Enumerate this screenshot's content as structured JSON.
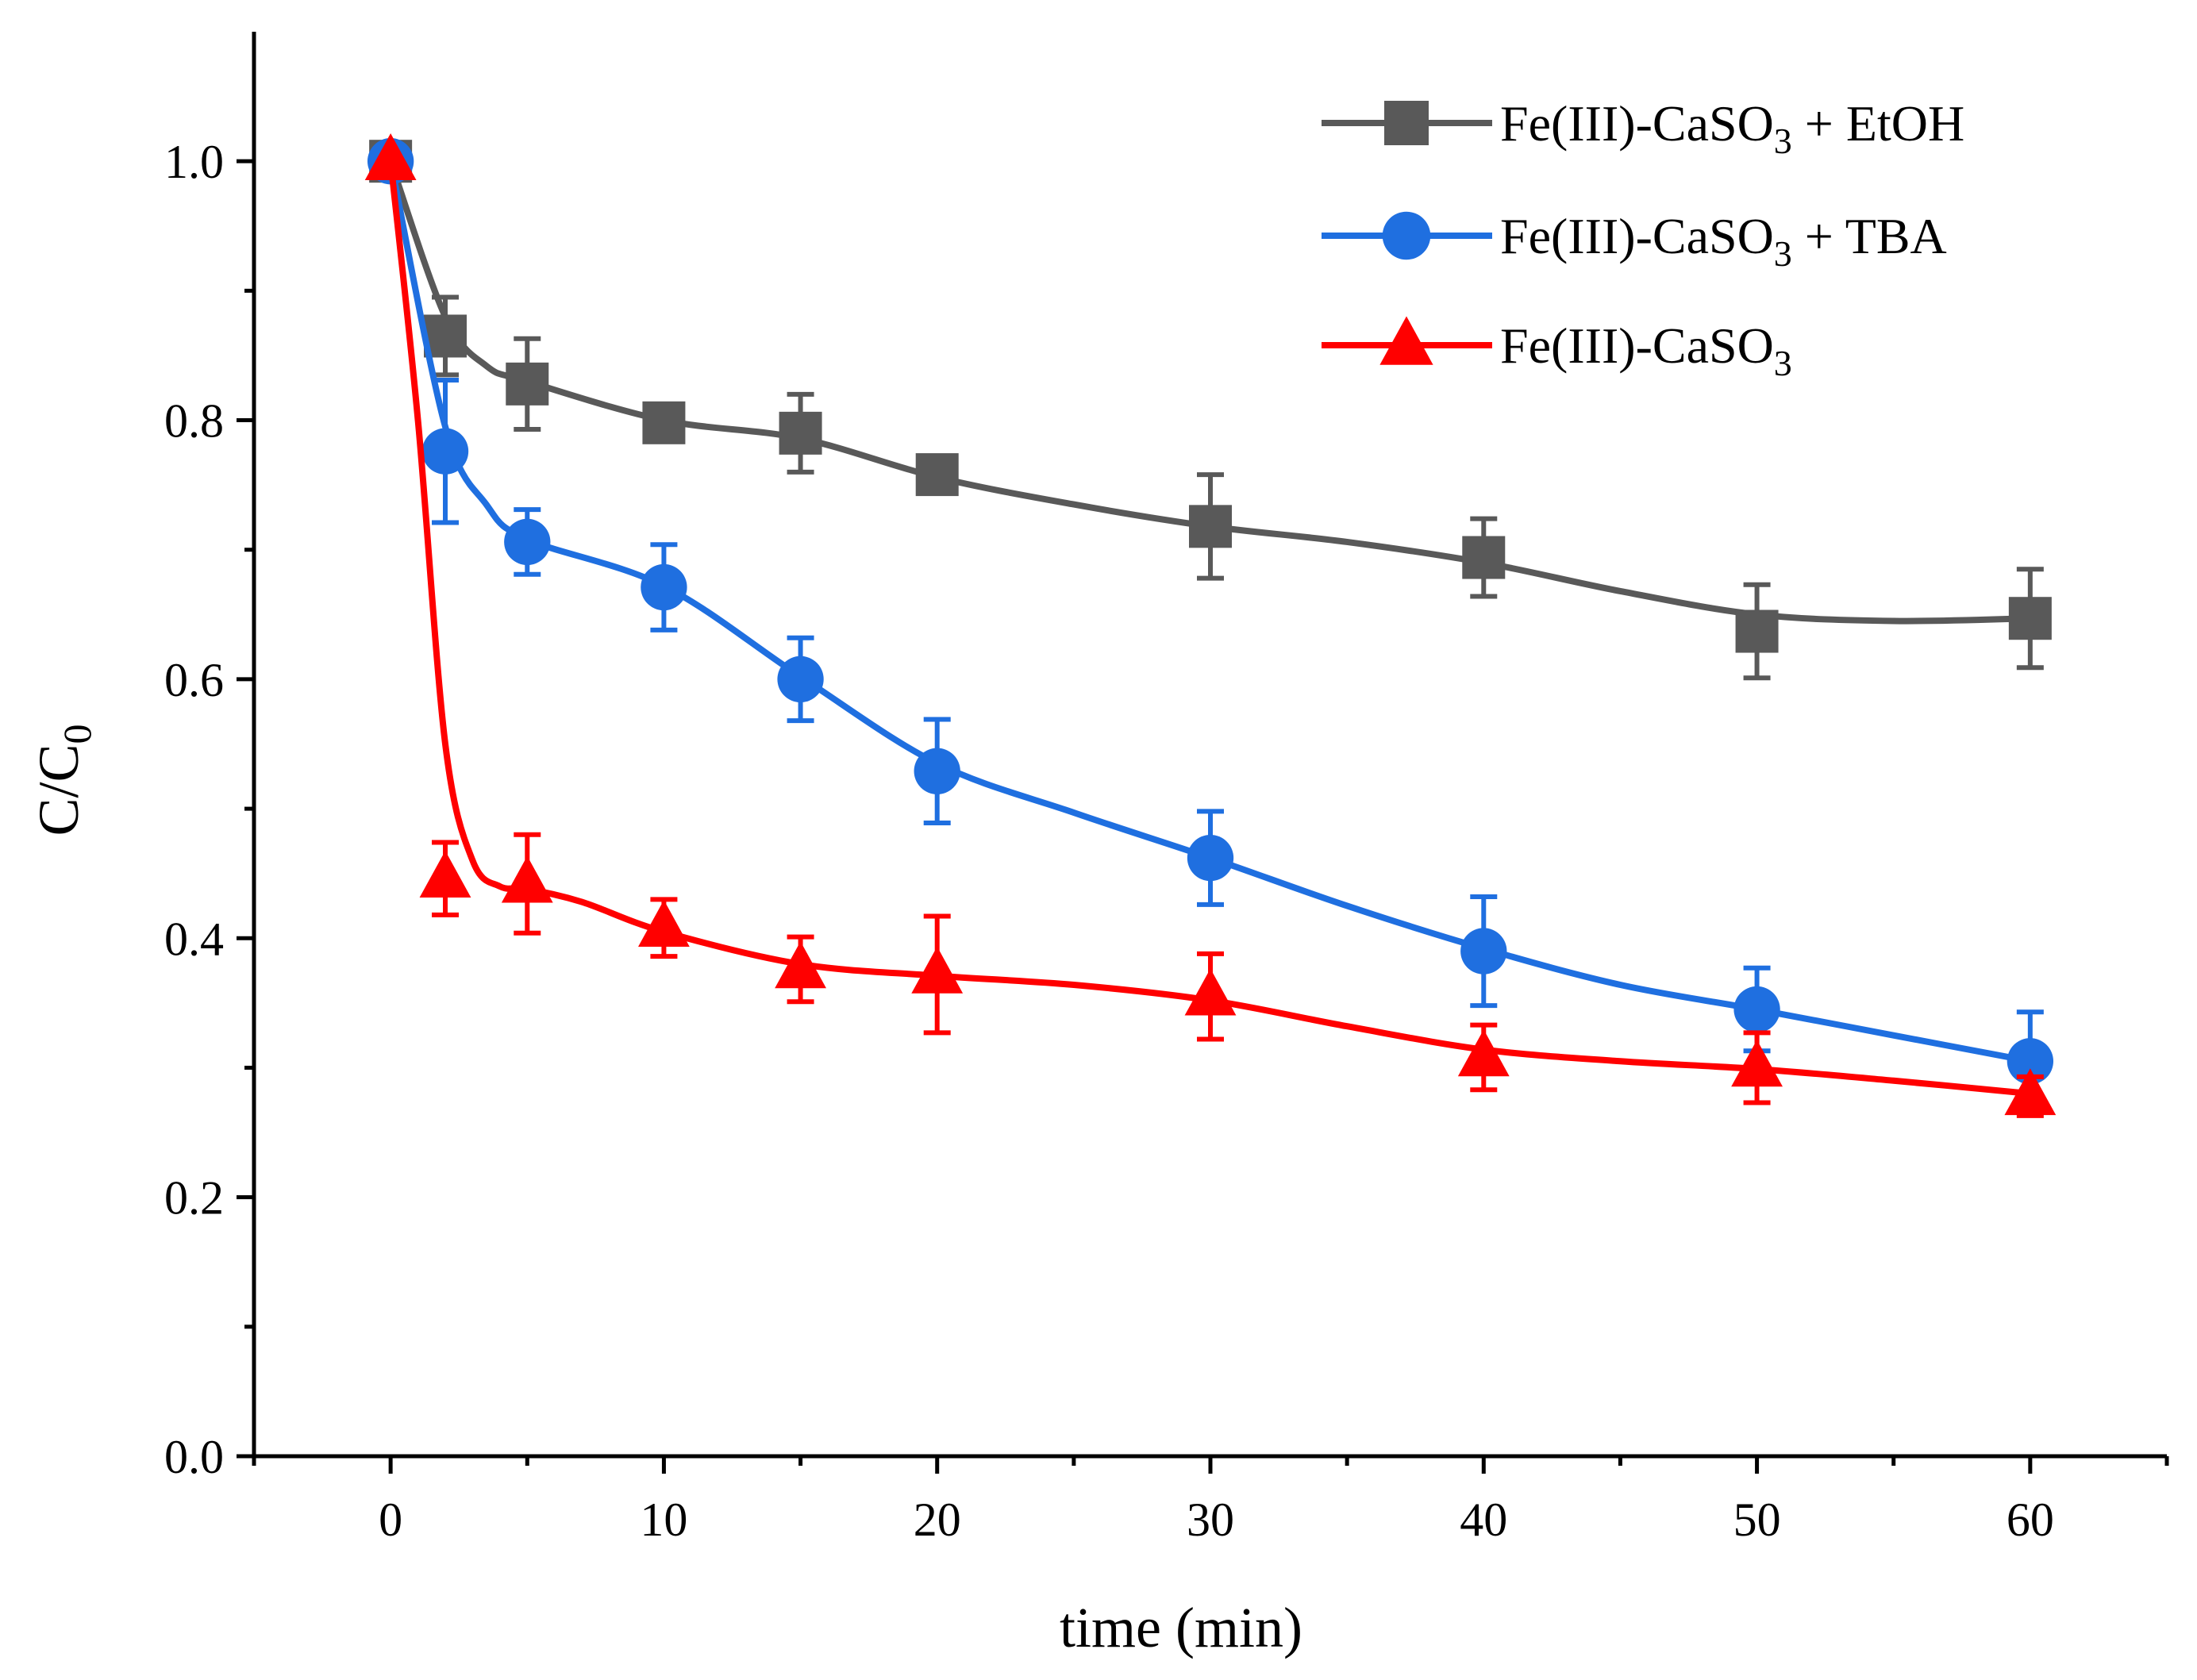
{
  "chart_data": {
    "type": "line",
    "xlabel": "time (min)",
    "ylabel": {
      "main": "C/C",
      "sub": "0"
    },
    "xlim": [
      -5,
      65
    ],
    "ylim": [
      0,
      1.1
    ],
    "x_ticks": [
      0,
      10,
      20,
      30,
      40,
      50,
      60
    ],
    "x_tick_labels": [
      "0",
      "10",
      "20",
      "30",
      "40",
      "50",
      "60"
    ],
    "x_minor_ticks": [
      -5,
      5,
      15,
      25,
      35,
      45,
      55,
      65
    ],
    "y_ticks": [
      0.0,
      0.2,
      0.4,
      0.6,
      0.8,
      1.0
    ],
    "y_tick_labels": [
      "0.0",
      "0.2",
      "0.4",
      "0.6",
      "0.8",
      "1.0"
    ],
    "y_minor_ticks": [
      0.1,
      0.3,
      0.5,
      0.7,
      0.9
    ],
    "grid": false,
    "legend_position": "top-right",
    "x": [
      0,
      2,
      5,
      10,
      15,
      20,
      30,
      40,
      50,
      60
    ],
    "series": [
      {
        "name": "Fe(III)-CaSO3 + EtOH",
        "label_parts": {
          "pre": "Fe(III)-CaSO",
          "sub": "3",
          "post": " + EtOH"
        },
        "color": "#595959",
        "marker": "square",
        "values": [
          1.0,
          0.865,
          0.828,
          0.798,
          0.79,
          0.758,
          0.718,
          0.694,
          0.637,
          0.647
        ],
        "errors": [
          0.0,
          0.03,
          0.035,
          0.012,
          0.03,
          0.012,
          0.04,
          0.03,
          0.036,
          0.038
        ],
        "fit": [
          [
            0,
            1.0
          ],
          [
            2,
            0.88
          ],
          [
            3.5,
            0.842
          ],
          [
            5,
            0.83
          ],
          [
            10,
            0.8
          ],
          [
            15,
            0.786
          ],
          [
            20,
            0.756
          ],
          [
            25,
            0.735
          ],
          [
            30,
            0.718
          ],
          [
            35,
            0.706
          ],
          [
            40,
            0.69
          ],
          [
            45,
            0.668
          ],
          [
            50,
            0.65
          ],
          [
            55,
            0.645
          ],
          [
            60,
            0.647
          ]
        ]
      },
      {
        "name": "Fe(III)-CaSO3 + TBA",
        "label_parts": {
          "pre": "Fe(III)-CaSO",
          "sub": "3",
          "post": " + TBA"
        },
        "color": "#1f6fe0",
        "marker": "circle",
        "values": [
          1.0,
          0.776,
          0.706,
          0.671,
          0.6,
          0.529,
          0.462,
          0.39,
          0.345,
          0.305
        ],
        "errors": [
          0.0,
          0.055,
          0.025,
          0.033,
          0.032,
          0.04,
          0.036,
          0.042,
          0.032,
          0.038
        ],
        "fit": [
          [
            0,
            1.0
          ],
          [
            2,
            0.795
          ],
          [
            3.5,
            0.735
          ],
          [
            5,
            0.708
          ],
          [
            10,
            0.672
          ],
          [
            15,
            0.602
          ],
          [
            20,
            0.535
          ],
          [
            25,
            0.497
          ],
          [
            30,
            0.462
          ],
          [
            35,
            0.425
          ],
          [
            40,
            0.392
          ],
          [
            45,
            0.364
          ],
          [
            50,
            0.345
          ],
          [
            55,
            0.325
          ],
          [
            60,
            0.305
          ]
        ]
      },
      {
        "name": "Fe(III)-CaSO3",
        "label_parts": {
          "pre": "Fe(III)-CaSO",
          "sub": "3",
          "post": ""
        },
        "color": "#ff0000",
        "marker": "triangle",
        "values": [
          1.0,
          0.446,
          0.442,
          0.408,
          0.376,
          0.372,
          0.355,
          0.308,
          0.3,
          0.278
        ],
        "errors": [
          0.0,
          0.028,
          0.038,
          0.022,
          0.025,
          0.045,
          0.033,
          0.025,
          0.027,
          0.015
        ],
        "fit": [
          [
            0,
            1.0
          ],
          [
            1,
            0.8
          ],
          [
            2,
            0.55
          ],
          [
            3,
            0.46
          ],
          [
            4,
            0.44
          ],
          [
            5,
            0.438
          ],
          [
            7,
            0.428
          ],
          [
            10,
            0.405
          ],
          [
            15,
            0.38
          ],
          [
            20,
            0.371
          ],
          [
            25,
            0.364
          ],
          [
            30,
            0.352
          ],
          [
            35,
            0.332
          ],
          [
            40,
            0.314
          ],
          [
            45,
            0.305
          ],
          [
            50,
            0.299
          ],
          [
            55,
            0.29
          ],
          [
            60,
            0.28
          ]
        ]
      }
    ]
  }
}
